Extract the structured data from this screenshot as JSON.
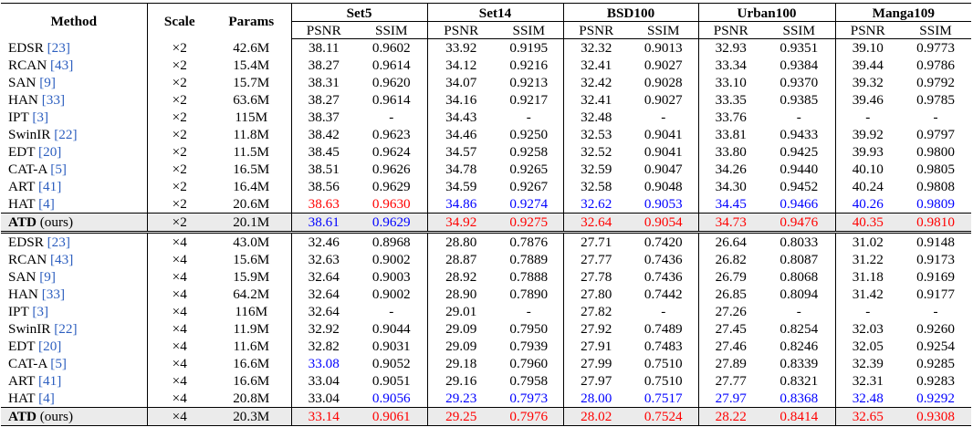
{
  "header": {
    "method": "Method",
    "scale": "Scale",
    "params": "Params",
    "datasets": [
      "Set5",
      "Set14",
      "BSD100",
      "Urban100",
      "Manga109"
    ],
    "psnr": "PSNR",
    "ssim": "SSIM"
  },
  "legend_colors": {
    "best": "#ff0000",
    "second": "#0000ff",
    "citation": "#2c5ebf"
  },
  "sections": [
    {
      "rows": [
        {
          "name": "EDSR",
          "ref": "[23]",
          "scale": "×2",
          "params": "42.6M",
          "v": [
            "38.11",
            "0.9602",
            "33.92",
            "0.9195",
            "32.32",
            "0.9013",
            "32.93",
            "0.9351",
            "39.10",
            "0.9773"
          ],
          "c": [
            "",
            "",
            "",
            "",
            "",
            "",
            "",
            "",
            "",
            ""
          ]
        },
        {
          "name": "RCAN",
          "ref": "[43]",
          "scale": "×2",
          "params": "15.4M",
          "v": [
            "38.27",
            "0.9614",
            "34.12",
            "0.9216",
            "32.41",
            "0.9027",
            "33.34",
            "0.9384",
            "39.44",
            "0.9786"
          ],
          "c": [
            "",
            "",
            "",
            "",
            "",
            "",
            "",
            "",
            "",
            ""
          ]
        },
        {
          "name": "SAN",
          "ref": "[9]",
          "scale": "×2",
          "params": "15.7M",
          "v": [
            "38.31",
            "0.9620",
            "34.07",
            "0.9213",
            "32.42",
            "0.9028",
            "33.10",
            "0.9370",
            "39.32",
            "0.9792"
          ],
          "c": [
            "",
            "",
            "",
            "",
            "",
            "",
            "",
            "",
            "",
            ""
          ]
        },
        {
          "name": "HAN",
          "ref": "[33]",
          "scale": "×2",
          "params": "63.6M",
          "v": [
            "38.27",
            "0.9614",
            "34.16",
            "0.9217",
            "32.41",
            "0.9027",
            "33.35",
            "0.9385",
            "39.46",
            "0.9785"
          ],
          "c": [
            "",
            "",
            "",
            "",
            "",
            "",
            "",
            "",
            "",
            ""
          ]
        },
        {
          "name": "IPT",
          "ref": "[3]",
          "scale": "×2",
          "params": "115M",
          "v": [
            "38.37",
            "-",
            "34.43",
            "-",
            "32.48",
            "-",
            "33.76",
            "-",
            "-",
            "-"
          ],
          "c": [
            "",
            "",
            "",
            "",
            "",
            "",
            "",
            "",
            "",
            ""
          ]
        },
        {
          "name": "SwinIR",
          "ref": "[22]",
          "scale": "×2",
          "params": "11.8M",
          "v": [
            "38.42",
            "0.9623",
            "34.46",
            "0.9250",
            "32.53",
            "0.9041",
            "33.81",
            "0.9433",
            "39.92",
            "0.9797"
          ],
          "c": [
            "",
            "",
            "",
            "",
            "",
            "",
            "",
            "",
            "",
            ""
          ]
        },
        {
          "name": "EDT",
          "ref": "[20]",
          "scale": "×2",
          "params": "11.5M",
          "v": [
            "38.45",
            "0.9624",
            "34.57",
            "0.9258",
            "32.52",
            "0.9041",
            "33.80",
            "0.9425",
            "39.93",
            "0.9800"
          ],
          "c": [
            "",
            "",
            "",
            "",
            "",
            "",
            "",
            "",
            "",
            ""
          ]
        },
        {
          "name": "CAT-A",
          "ref": "[5]",
          "scale": "×2",
          "params": "16.5M",
          "v": [
            "38.51",
            "0.9626",
            "34.78",
            "0.9265",
            "32.59",
            "0.9047",
            "34.26",
            "0.9440",
            "40.10",
            "0.9805"
          ],
          "c": [
            "",
            "",
            "",
            "",
            "",
            "",
            "",
            "",
            "",
            ""
          ]
        },
        {
          "name": "ART",
          "ref": "[41]",
          "scale": "×2",
          "params": "16.4M",
          "v": [
            "38.56",
            "0.9629",
            "34.59",
            "0.9267",
            "32.58",
            "0.9048",
            "34.30",
            "0.9452",
            "40.24",
            "0.9808"
          ],
          "c": [
            "",
            "",
            "",
            "",
            "",
            "",
            "",
            "",
            "",
            ""
          ]
        },
        {
          "name": "HAT",
          "ref": "[4]",
          "scale": "×2",
          "params": "20.6M",
          "v": [
            "38.63",
            "0.9630",
            "34.86",
            "0.9274",
            "32.62",
            "0.9053",
            "34.45",
            "0.9466",
            "40.26",
            "0.9809"
          ],
          "c": [
            "red",
            "red",
            "blue",
            "blue",
            "blue",
            "blue",
            "blue",
            "blue",
            "blue",
            "blue"
          ]
        },
        {
          "name": "ATD",
          "ref": "(ours)",
          "scale": "×2",
          "params": "20.1M",
          "ours": true,
          "v": [
            "38.61",
            "0.9629",
            "34.92",
            "0.9275",
            "32.64",
            "0.9054",
            "34.73",
            "0.9476",
            "40.35",
            "0.9810"
          ],
          "c": [
            "blue",
            "blue",
            "red",
            "red",
            "red",
            "red",
            "red",
            "red",
            "red",
            "red"
          ]
        }
      ]
    },
    {
      "rows": [
        {
          "name": "EDSR",
          "ref": "[23]",
          "scale": "×4",
          "params": "43.0M",
          "v": [
            "32.46",
            "0.8968",
            "28.80",
            "0.7876",
            "27.71",
            "0.7420",
            "26.64",
            "0.8033",
            "31.02",
            "0.9148"
          ],
          "c": [
            "",
            "",
            "",
            "",
            "",
            "",
            "",
            "",
            "",
            ""
          ]
        },
        {
          "name": "RCAN",
          "ref": "[43]",
          "scale": "×4",
          "params": "15.6M",
          "v": [
            "32.63",
            "0.9002",
            "28.87",
            "0.7889",
            "27.77",
            "0.7436",
            "26.82",
            "0.8087",
            "31.22",
            "0.9173"
          ],
          "c": [
            "",
            "",
            "",
            "",
            "",
            "",
            "",
            "",
            "",
            ""
          ]
        },
        {
          "name": "SAN",
          "ref": "[9]",
          "scale": "×4",
          "params": "15.9M",
          "v": [
            "32.64",
            "0.9003",
            "28.92",
            "0.7888",
            "27.78",
            "0.7436",
            "26.79",
            "0.8068",
            "31.18",
            "0.9169"
          ],
          "c": [
            "",
            "",
            "",
            "",
            "",
            "",
            "",
            "",
            "",
            ""
          ]
        },
        {
          "name": "HAN",
          "ref": "[33]",
          "scale": "×4",
          "params": "64.2M",
          "v": [
            "32.64",
            "0.9002",
            "28.90",
            "0.7890",
            "27.80",
            "0.7442",
            "26.85",
            "0.8094",
            "31.42",
            "0.9177"
          ],
          "c": [
            "",
            "",
            "",
            "",
            "",
            "",
            "",
            "",
            "",
            ""
          ]
        },
        {
          "name": "IPT",
          "ref": "[3]",
          "scale": "×4",
          "params": "116M",
          "v": [
            "32.64",
            "-",
            "29.01",
            "-",
            "27.82",
            "-",
            "27.26",
            "-",
            "-",
            "-"
          ],
          "c": [
            "",
            "",
            "",
            "",
            "",
            "",
            "",
            "",
            "",
            ""
          ]
        },
        {
          "name": "SwinIR",
          "ref": "[22]",
          "scale": "×4",
          "params": "11.9M",
          "v": [
            "32.92",
            "0.9044",
            "29.09",
            "0.7950",
            "27.92",
            "0.7489",
            "27.45",
            "0.8254",
            "32.03",
            "0.9260"
          ],
          "c": [
            "",
            "",
            "",
            "",
            "",
            "",
            "",
            "",
            "",
            ""
          ]
        },
        {
          "name": "EDT",
          "ref": "[20]",
          "scale": "×4",
          "params": "11.6M",
          "v": [
            "32.82",
            "0.9031",
            "29.09",
            "0.7939",
            "27.91",
            "0.7483",
            "27.46",
            "0.8246",
            "32.05",
            "0.9254"
          ],
          "c": [
            "",
            "",
            "",
            "",
            "",
            "",
            "",
            "",
            "",
            ""
          ]
        },
        {
          "name": "CAT-A",
          "ref": "[5]",
          "scale": "×4",
          "params": "16.6M",
          "v": [
            "33.08",
            "0.9052",
            "29.18",
            "0.7960",
            "27.99",
            "0.7510",
            "27.89",
            "0.8339",
            "32.39",
            "0.9285"
          ],
          "c": [
            "blue",
            "",
            "",
            "",
            "",
            "",
            "",
            "",
            "",
            ""
          ]
        },
        {
          "name": "ART",
          "ref": "[41]",
          "scale": "×4",
          "params": "16.6M",
          "v": [
            "33.04",
            "0.9051",
            "29.16",
            "0.7958",
            "27.97",
            "0.7510",
            "27.77",
            "0.8321",
            "32.31",
            "0.9283"
          ],
          "c": [
            "",
            "",
            "",
            "",
            "",
            "",
            "",
            "",
            "",
            ""
          ]
        },
        {
          "name": "HAT",
          "ref": "[4]",
          "scale": "×4",
          "params": "20.8M",
          "v": [
            "33.04",
            "0.9056",
            "29.23",
            "0.7973",
            "28.00",
            "0.7517",
            "27.97",
            "0.8368",
            "32.48",
            "0.9292"
          ],
          "c": [
            "",
            "blue",
            "blue",
            "blue",
            "blue",
            "blue",
            "blue",
            "blue",
            "blue",
            "blue"
          ]
        },
        {
          "name": "ATD",
          "ref": "(ours)",
          "scale": "×4",
          "params": "20.3M",
          "ours": true,
          "v": [
            "33.14",
            "0.9061",
            "29.25",
            "0.7976",
            "28.02",
            "0.7524",
            "28.22",
            "0.8414",
            "32.65",
            "0.9308"
          ],
          "c": [
            "red",
            "red",
            "red",
            "red",
            "red",
            "red",
            "red",
            "red",
            "red",
            "red"
          ]
        }
      ]
    }
  ]
}
